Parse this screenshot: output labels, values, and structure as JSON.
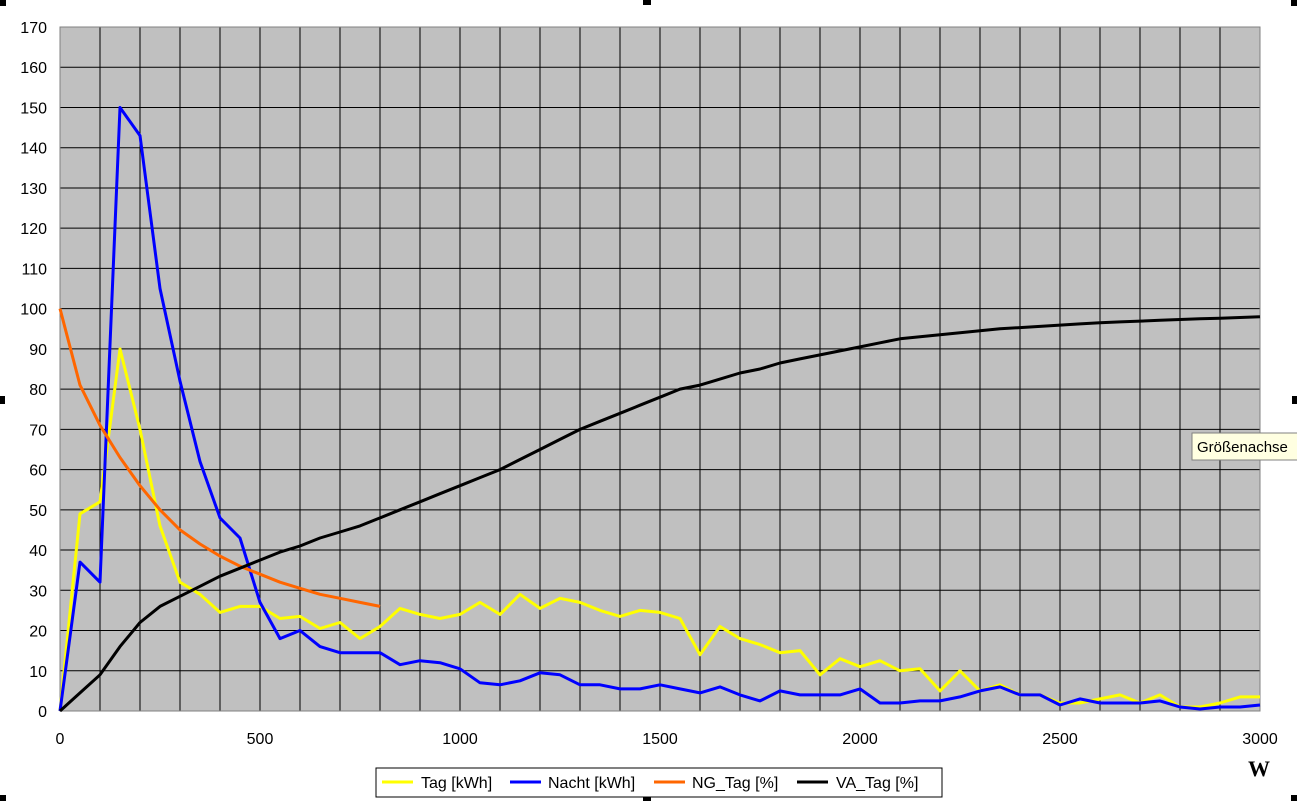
{
  "chart_data": {
    "type": "line",
    "x_unit_label": "W",
    "xlim": [
      0,
      3000
    ],
    "ylim": [
      0,
      170
    ],
    "x_ticks": [
      0,
      500,
      1000,
      1500,
      2000,
      2500,
      3000
    ],
    "y_ticks": [
      0,
      10,
      20,
      30,
      40,
      50,
      60,
      70,
      80,
      90,
      100,
      110,
      120,
      130,
      140,
      150,
      160,
      170
    ],
    "grid": true,
    "plot_background": "#C0C0C0",
    "legend_position": "bottom",
    "tooltip": "Größenachse",
    "series": [
      {
        "name": "Tag [kWh]",
        "color": "#FFFF00",
        "points": [
          [
            0,
            0
          ],
          [
            50,
            49
          ],
          [
            100,
            52
          ],
          [
            150,
            90
          ],
          [
            200,
            70
          ],
          [
            250,
            46
          ],
          [
            300,
            32
          ],
          [
            350,
            29
          ],
          [
            400,
            24.5
          ],
          [
            450,
            26
          ],
          [
            500,
            26
          ],
          [
            550,
            23
          ],
          [
            600,
            23.5
          ],
          [
            650,
            20.5
          ],
          [
            700,
            22
          ],
          [
            750,
            18
          ],
          [
            800,
            21
          ],
          [
            850,
            25.5
          ],
          [
            900,
            24
          ],
          [
            950,
            23
          ],
          [
            1000,
            24
          ],
          [
            1050,
            27
          ],
          [
            1100,
            24
          ],
          [
            1150,
            29
          ],
          [
            1200,
            25.5
          ],
          [
            1250,
            28
          ],
          [
            1300,
            27
          ],
          [
            1350,
            25
          ],
          [
            1400,
            23.5
          ],
          [
            1450,
            25
          ],
          [
            1500,
            24.5
          ],
          [
            1550,
            23
          ],
          [
            1600,
            14
          ],
          [
            1650,
            21
          ],
          [
            1700,
            18
          ],
          [
            1750,
            16.5
          ],
          [
            1800,
            14.5
          ],
          [
            1850,
            15
          ],
          [
            1900,
            9
          ],
          [
            1950,
            13
          ],
          [
            2000,
            11
          ],
          [
            2050,
            12.5
          ],
          [
            2100,
            10
          ],
          [
            2150,
            10.5
          ],
          [
            2200,
            5
          ],
          [
            2250,
            10
          ],
          [
            2300,
            5
          ],
          [
            2350,
            6.5
          ],
          [
            2400,
            4
          ],
          [
            2450,
            4
          ],
          [
            2500,
            2
          ],
          [
            2550,
            2
          ],
          [
            2600,
            3
          ],
          [
            2650,
            4
          ],
          [
            2700,
            2
          ],
          [
            2750,
            4
          ],
          [
            2800,
            1
          ],
          [
            2850,
            1
          ],
          [
            2900,
            2
          ],
          [
            2950,
            3.5
          ],
          [
            3000,
            3.5
          ]
        ]
      },
      {
        "name": "Nacht [kWh]",
        "color": "#0000FF",
        "points": [
          [
            0,
            0
          ],
          [
            50,
            37
          ],
          [
            100,
            32
          ],
          [
            150,
            150
          ],
          [
            200,
            143
          ],
          [
            250,
            105
          ],
          [
            300,
            82
          ],
          [
            350,
            62
          ],
          [
            400,
            48
          ],
          [
            450,
            43
          ],
          [
            500,
            27
          ],
          [
            550,
            18
          ],
          [
            600,
            20
          ],
          [
            650,
            16
          ],
          [
            700,
            14.5
          ],
          [
            750,
            14.5
          ],
          [
            800,
            14.5
          ],
          [
            850,
            11.5
          ],
          [
            900,
            12.5
          ],
          [
            950,
            12
          ],
          [
            1000,
            10.5
          ],
          [
            1050,
            7
          ],
          [
            1100,
            6.5
          ],
          [
            1150,
            7.5
          ],
          [
            1200,
            9.5
          ],
          [
            1250,
            9
          ],
          [
            1300,
            6.5
          ],
          [
            1350,
            6.5
          ],
          [
            1400,
            5.5
          ],
          [
            1450,
            5.5
          ],
          [
            1500,
            6.5
          ],
          [
            1550,
            5.5
          ],
          [
            1600,
            4.5
          ],
          [
            1650,
            6
          ],
          [
            1700,
            4
          ],
          [
            1750,
            2.5
          ],
          [
            1800,
            5
          ],
          [
            1850,
            4
          ],
          [
            1900,
            4
          ],
          [
            1950,
            4
          ],
          [
            2000,
            5.5
          ],
          [
            2050,
            2
          ],
          [
            2100,
            2
          ],
          [
            2150,
            2.5
          ],
          [
            2200,
            2.5
          ],
          [
            2250,
            3.5
          ],
          [
            2300,
            5
          ],
          [
            2350,
            6
          ],
          [
            2400,
            4
          ],
          [
            2450,
            4
          ],
          [
            2500,
            1.5
          ],
          [
            2550,
            3
          ],
          [
            2600,
            2
          ],
          [
            2650,
            2
          ],
          [
            2700,
            2
          ],
          [
            2750,
            2.5
          ],
          [
            2800,
            1
          ],
          [
            2850,
            0.5
          ],
          [
            2900,
            1
          ],
          [
            2950,
            1
          ],
          [
            3000,
            1.5
          ]
        ]
      },
      {
        "name": "NG_Tag [%]",
        "color": "#FF6600",
        "points": [
          [
            0,
            100
          ],
          [
            50,
            81
          ],
          [
            100,
            71
          ],
          [
            150,
            63
          ],
          [
            200,
            56
          ],
          [
            250,
            50
          ],
          [
            300,
            45
          ],
          [
            350,
            41.5
          ],
          [
            400,
            38.5
          ],
          [
            450,
            36
          ],
          [
            500,
            34
          ],
          [
            550,
            32
          ],
          [
            600,
            30.5
          ],
          [
            650,
            29
          ],
          [
            700,
            28
          ],
          [
            750,
            27
          ],
          [
            800,
            26
          ]
        ]
      },
      {
        "name": "VA_Tag [%]",
        "color": "#000000",
        "points": [
          [
            0,
            0
          ],
          [
            50,
            4.5
          ],
          [
            100,
            9
          ],
          [
            150,
            16
          ],
          [
            200,
            22
          ],
          [
            250,
            26
          ],
          [
            300,
            28.5
          ],
          [
            350,
            31
          ],
          [
            400,
            33.5
          ],
          [
            450,
            35.5
          ],
          [
            500,
            37.5
          ],
          [
            550,
            39.5
          ],
          [
            600,
            41
          ],
          [
            650,
            43
          ],
          [
            700,
            44.5
          ],
          [
            750,
            46
          ],
          [
            800,
            48
          ],
          [
            850,
            50
          ],
          [
            900,
            52
          ],
          [
            950,
            54
          ],
          [
            1000,
            56
          ],
          [
            1050,
            58
          ],
          [
            1100,
            60
          ],
          [
            1150,
            62.5
          ],
          [
            1200,
            65
          ],
          [
            1250,
            67.5
          ],
          [
            1300,
            70
          ],
          [
            1350,
            72
          ],
          [
            1400,
            74
          ],
          [
            1450,
            76
          ],
          [
            1500,
            78
          ],
          [
            1550,
            80
          ],
          [
            1600,
            81
          ],
          [
            1650,
            82.5
          ],
          [
            1700,
            84
          ],
          [
            1750,
            85
          ],
          [
            1800,
            86.5
          ],
          [
            1850,
            87.5
          ],
          [
            1900,
            88.5
          ],
          [
            1950,
            89.5
          ],
          [
            2000,
            90.5
          ],
          [
            2050,
            91.5
          ],
          [
            2100,
            92.5
          ],
          [
            2150,
            93
          ],
          [
            2200,
            93.5
          ],
          [
            2250,
            94
          ],
          [
            2300,
            94.5
          ],
          [
            2350,
            95
          ],
          [
            2400,
            95.3
          ],
          [
            2450,
            95.6
          ],
          [
            2500,
            95.9
          ],
          [
            2550,
            96.2
          ],
          [
            2600,
            96.5
          ],
          [
            2650,
            96.7
          ],
          [
            2700,
            96.9
          ],
          [
            2750,
            97.1
          ],
          [
            2800,
            97.3
          ],
          [
            2850,
            97.5
          ],
          [
            2900,
            97.6
          ],
          [
            2950,
            97.8
          ],
          [
            3000,
            98
          ]
        ]
      }
    ]
  }
}
